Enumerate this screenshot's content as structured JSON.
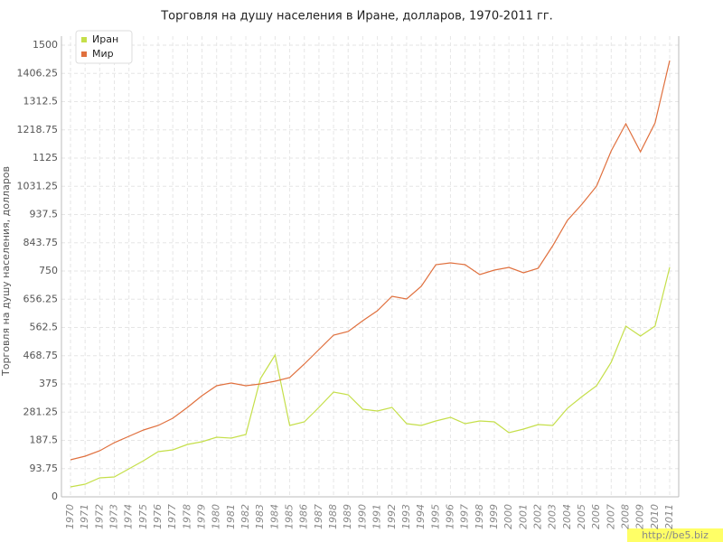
{
  "chart_data": {
    "type": "line",
    "title": "Торговля на душу населения в Иране, долларов, 1970-2011 гг.",
    "y_label": "Торговля на душу населения, долларов",
    "watermark": "http://be5.biz",
    "categories": [
      "1970",
      "1971",
      "1972",
      "1973",
      "1974",
      "1975",
      "1976",
      "1977",
      "1978",
      "1979",
      "1980",
      "1981",
      "1982",
      "1983",
      "1984",
      "1985",
      "1986",
      "1987",
      "1988",
      "1989",
      "1990",
      "1991",
      "1992",
      "1993",
      "1994",
      "1995",
      "1996",
      "1997",
      "1998",
      "1999",
      "2000",
      "2001",
      "2002",
      "2003",
      "2004",
      "2005",
      "2006",
      "2007",
      "2008",
      "2009",
      "2010",
      "2011"
    ],
    "series": [
      {
        "name": "Иран",
        "color": "#c5df4a",
        "values": [
          33,
          42,
          63,
          66,
          93,
          120,
          150,
          156,
          174,
          183,
          198,
          195,
          207,
          393,
          471,
          237,
          249,
          297,
          348,
          339,
          291,
          285,
          297,
          243,
          237,
          252,
          264,
          243,
          252,
          249,
          213,
          225,
          240,
          237,
          294,
          333,
          369,
          447,
          567,
          534,
          567,
          762
        ]
      },
      {
        "name": "Мир",
        "color": "#e0703e",
        "values": [
          123,
          135,
          153,
          180,
          201,
          222,
          237,
          261,
          297,
          336,
          369,
          378,
          369,
          375,
          384,
          396,
          441,
          489,
          537,
          549,
          585,
          618,
          666,
          657,
          699,
          771,
          777,
          771,
          738,
          753,
          762,
          744,
          759,
          834,
          918,
          972,
          1032,
          1149,
          1239,
          1146,
          1242,
          1449
        ]
      }
    ],
    "ylim": [
      0,
      1500
    ],
    "yticks": [
      0,
      93.75,
      187.5,
      281.25,
      375,
      468.75,
      562.5,
      656.25,
      750,
      843.75,
      937.5,
      1031.25,
      1125,
      1218.75,
      1312.5,
      1406.25,
      1500
    ],
    "grid": true,
    "legend": "top-left"
  }
}
